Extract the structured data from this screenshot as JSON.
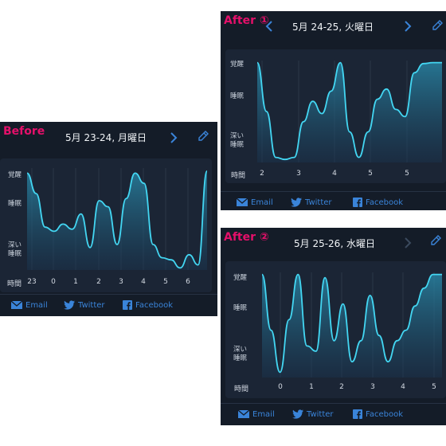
{
  "before": {
    "label": "Before",
    "date": "5月 23-24, 月曜日",
    "y_labels": [
      "覚醒",
      "睡眠",
      "深い\n睡眠"
    ],
    "x_axis_title": "時間",
    "x_labels": [
      "23",
      "0",
      "1",
      "2",
      "3",
      "4",
      "5",
      "6"
    ],
    "share": {
      "email": "Email",
      "twitter": "Twitter",
      "facebook": "Facebook"
    }
  },
  "after1": {
    "label": "After ①",
    "date": "5月 24-25, 火曜日",
    "y_labels": [
      "覚醒",
      "睡眠",
      "深い\n睡眠"
    ],
    "x_axis_title": "時間",
    "x_labels": [
      "2",
      "3",
      "4",
      "5",
      "5"
    ],
    "share": {
      "email": "Email",
      "twitter": "Twitter",
      "facebook": "Facebook"
    }
  },
  "after2": {
    "label": "After ②",
    "date": "5月 25-26, 水曜日",
    "y_labels": [
      "覚醒",
      "睡眠",
      "深い\n睡眠"
    ],
    "x_axis_title": "時間",
    "x_labels": [
      "0",
      "1",
      "2",
      "3",
      "4",
      "5"
    ],
    "share": {
      "email": "Email",
      "twitter": "Twitter",
      "facebook": "Facebook"
    }
  },
  "chart_data": [
    {
      "type": "area",
      "x": [
        0.0,
        0.05,
        0.1,
        0.15,
        0.2,
        0.25,
        0.3,
        0.35,
        0.4,
        0.45,
        0.5,
        0.55,
        0.6,
        0.65,
        0.7,
        0.75,
        0.8,
        0.85,
        0.9,
        0.95,
        1.0
      ],
      "values": [
        0.95,
        0.75,
        0.42,
        0.38,
        0.45,
        0.4,
        0.55,
        0.22,
        0.68,
        0.62,
        0.25,
        0.7,
        0.95,
        0.85,
        0.25,
        0.12,
        0.1,
        0.02,
        0.15,
        0.05,
        0.97
      ],
      "y_categories": [
        "深い睡眠",
        "睡眠",
        "覚醒"
      ]
    },
    {
      "type": "area",
      "x": [
        0.0,
        0.05,
        0.1,
        0.15,
        0.2,
        0.25,
        0.3,
        0.35,
        0.4,
        0.45,
        0.5,
        0.55,
        0.6,
        0.65,
        0.7,
        0.75,
        0.8,
        0.85,
        0.9,
        0.95,
        1.0
      ],
      "values": [
        0.98,
        0.5,
        0.05,
        0.03,
        0.05,
        0.4,
        0.6,
        0.48,
        0.7,
        0.98,
        0.3,
        0.05,
        0.3,
        0.62,
        0.72,
        0.52,
        0.45,
        0.88,
        0.97,
        0.98,
        0.98
      ],
      "y_categories": [
        "深い睡眠",
        "睡眠",
        "覚醒"
      ]
    },
    {
      "type": "area",
      "x": [
        0.0,
        0.05,
        0.1,
        0.15,
        0.2,
        0.25,
        0.3,
        0.35,
        0.4,
        0.45,
        0.5,
        0.55,
        0.6,
        0.65,
        0.7,
        0.75,
        0.8,
        0.85,
        0.9,
        0.95,
        1.0
      ],
      "values": [
        0.98,
        0.45,
        0.05,
        0.55,
        0.98,
        0.3,
        0.25,
        0.95,
        0.35,
        0.7,
        0.15,
        0.35,
        0.78,
        0.4,
        0.15,
        0.35,
        0.45,
        0.68,
        0.85,
        0.98,
        0.98
      ],
      "y_categories": [
        "深い睡眠",
        "睡眠",
        "覚醒"
      ]
    }
  ]
}
